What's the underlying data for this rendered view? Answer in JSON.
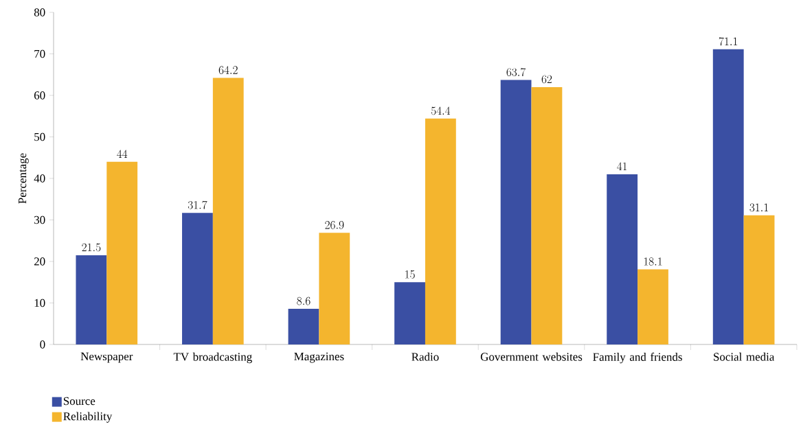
{
  "chart_data": {
    "type": "bar",
    "ylabel": "Percentage",
    "categories": [
      "Newspaper",
      "TV broadcasting",
      "Magazines",
      "Radio",
      "Government websites",
      "Family and friends",
      "Social media"
    ],
    "series": [
      {
        "name": "Source",
        "color": "#3a4fa3",
        "values": [
          21.5,
          31.7,
          8.6,
          15,
          63.7,
          41,
          71.1
        ]
      },
      {
        "name": "Reliability",
        "color": "#f4b52e",
        "values": [
          44,
          64.2,
          26.9,
          54.4,
          62,
          18.1,
          31.1
        ]
      }
    ],
    "ylim": [
      0,
      80
    ],
    "yticks": [
      0,
      10,
      20,
      30,
      40,
      50,
      60,
      70,
      80
    ],
    "data_labels": true,
    "legend": "bottom left",
    "grid": false
  }
}
